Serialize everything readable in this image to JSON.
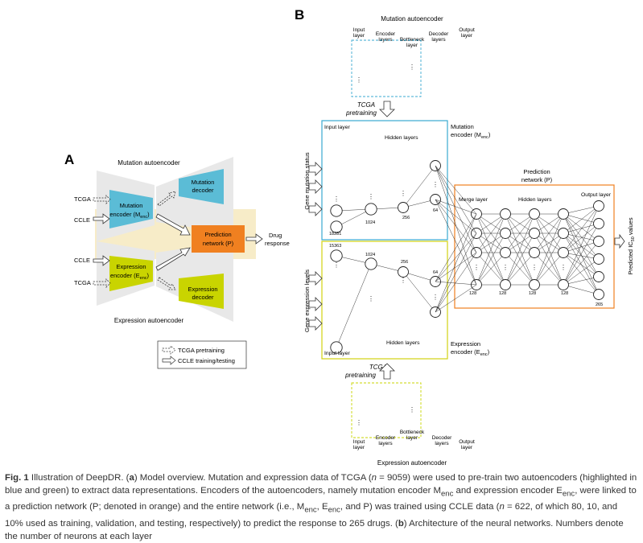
{
  "panel_a": {
    "label": "A",
    "mutation_autoencoder": "Mutation autoencoder",
    "expression_autoencoder": "Expression autoencoder",
    "mutation_encoder": [
      "Mutation",
      "encoder (M",
      "enc",
      ")"
    ],
    "mutation_decoder": [
      "Mutation",
      "decoder"
    ],
    "expression_encoder": [
      "Expression",
      "encoder (E",
      "enc",
      ")"
    ],
    "expression_decoder": [
      "Expression",
      "decoder"
    ],
    "prediction_network": [
      "Prediction",
      "network (P)"
    ],
    "drug_response": [
      "Drug",
      "response"
    ],
    "tcga": "TCGA",
    "ccle": "CCLE",
    "legend_tcga": "TCGA pretraining",
    "legend_ccle": "CCLE training/testing"
  },
  "panel_b": {
    "label": "B",
    "top_title": "Mutation autoencoder",
    "bottom_title": "Expression autoencoder",
    "input_layer": [
      "Input",
      "layer"
    ],
    "encoder_layers": [
      "Encoder",
      "layers"
    ],
    "bottleneck_layer": [
      "Bottleneck",
      "layer"
    ],
    "decoder_layers": [
      "Decoder",
      "layers"
    ],
    "output_layer": [
      "Output",
      "layer"
    ],
    "tcga_pretraining": [
      "TCGA",
      "pretraining"
    ],
    "mutation_encoder": [
      "Mutation",
      "encoder (M",
      "enc",
      ")"
    ],
    "expression_encoder": [
      "Expression",
      "encoder (E",
      "enc",
      ")"
    ],
    "prediction_network": [
      "Prediction",
      "network (P)"
    ],
    "input_layer_label": "Input layer",
    "hidden_layers": "Hidden layers",
    "merge_layer": "Merge layer",
    "output_layer_label": "Output layer",
    "gene_mutation_status": "Gene mutation status",
    "gene_expression_levels": "Gene expression levels",
    "predicted_ic50": [
      "Predicted IC",
      "50",
      " values"
    ],
    "mut_neurons": [
      "18281",
      "1024",
      "256",
      "64"
    ],
    "exp_neurons": [
      "15363",
      "1024",
      "256",
      "64"
    ],
    "pred_neurons": [
      "128",
      "128",
      "128",
      "128",
      "265"
    ]
  },
  "caption": {
    "fig": "Fig. 1",
    "text": " Illustration of DeepDR. (",
    "a": "a",
    "t1": ") Model overview. Mutation and expression data of TCGA (",
    "n1": "n",
    "t2": " = 9059) were used to pre-train two autoencoders (highlighted in blue and green) to extract data representations. Encoders of the autoencoders, namely mutation encoder M",
    "enc1": "enc",
    "t3": " and expression encoder E",
    "enc2": "enc",
    "t4": ", were linked to a prediction network (P; denoted in orange) and the entire network (i.e., M",
    "enc3": "enc",
    "t5": ", E",
    "enc4": "enc",
    "t6": ", and P) was trained using CCLE data (",
    "n2": "n",
    "t7": " = 622, of which 80, 10, and 10% used as training, validation, and testing, respectively) to predict the response to 265 drugs. (",
    "b": "b",
    "t8": ") Architecture of the neural networks. Numbers denote the number of neurons at each layer"
  },
  "colors": {
    "blue": "#5bbcd6",
    "green": "#c9d400",
    "orange": "#f08020",
    "beige": "#f7ecc8",
    "grey": "#e6e6e6"
  }
}
